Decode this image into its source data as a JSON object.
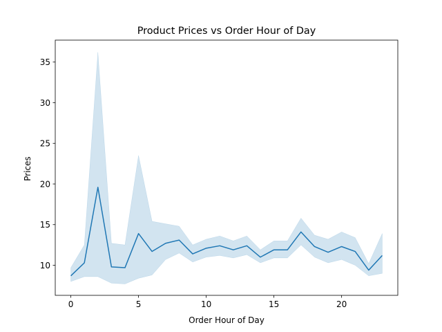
{
  "chart_data": {
    "type": "line",
    "title": "Product Prices vs Order Hour of Day",
    "xlabel": "Order Hour of Day",
    "ylabel": "Prices",
    "xlim": [
      -1.15,
      24.15
    ],
    "ylim": [
      6.3,
      37.7
    ],
    "xticks": [
      0,
      5,
      10,
      15,
      20
    ],
    "yticks": [
      10,
      15,
      20,
      25,
      30,
      35
    ],
    "grid": false,
    "series": [
      {
        "x": [
          0,
          1,
          2,
          3,
          4,
          5,
          6,
          7,
          8,
          9,
          10,
          11,
          12,
          13,
          14,
          15,
          16,
          17,
          18,
          19,
          20,
          21,
          22,
          23
        ],
        "values": [
          8.7,
          10.3,
          19.6,
          9.8,
          9.7,
          13.9,
          11.7,
          12.7,
          13.1,
          11.4,
          12.1,
          12.4,
          11.9,
          12.4,
          11.0,
          11.9,
          11.9,
          14.1,
          12.3,
          11.6,
          12.3,
          11.7,
          9.4,
          11.2
        ],
        "ci_upper": [
          9.7,
          12.5,
          36.2,
          12.7,
          12.5,
          23.5,
          15.4,
          15.1,
          14.8,
          12.5,
          13.2,
          13.6,
          13.0,
          13.6,
          11.9,
          13.0,
          13.0,
          15.8,
          13.7,
          13.2,
          14.1,
          13.4,
          10.2,
          13.9
        ],
        "ci_lower": [
          8.0,
          8.6,
          8.6,
          7.8,
          7.7,
          8.4,
          8.8,
          10.7,
          11.5,
          10.4,
          11.0,
          11.2,
          10.9,
          11.3,
          10.3,
          10.9,
          10.9,
          12.5,
          11.0,
          10.3,
          10.7,
          10.0,
          8.7,
          9.0
        ],
        "color": "#1f77b4",
        "band_color": "#1f77b4"
      }
    ]
  }
}
